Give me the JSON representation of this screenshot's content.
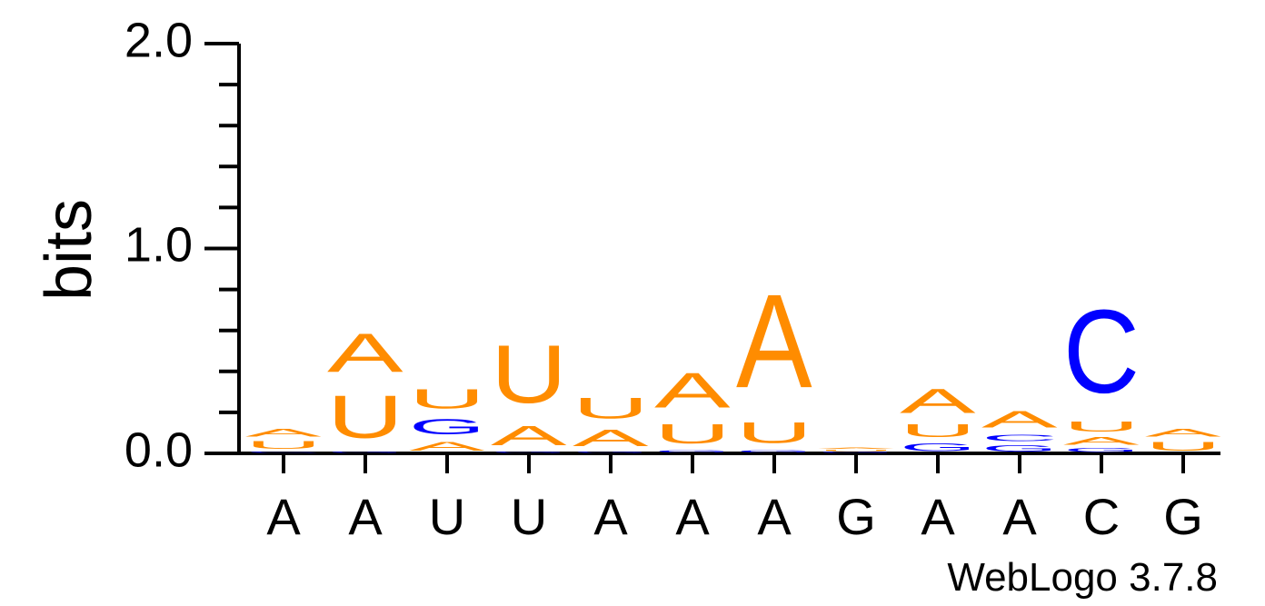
{
  "chart_data": {
    "type": "sequence-logo",
    "ylabel": "bits",
    "ylim": [
      0,
      2
    ],
    "yticks": [
      "0.0",
      "1.0",
      "2.0"
    ],
    "footer": "WebLogo 3.7.8",
    "colors": {
      "A": "#ff8c00",
      "U": "#ff8c00",
      "G": "#0000ff",
      "C": "#0000ff"
    },
    "positions": [
      {
        "label": "A",
        "stack": [
          {
            "letter": "C",
            "bits": 0.01
          },
          {
            "letter": "U",
            "bits": 0.06
          },
          {
            "letter": "A",
            "bits": 0.06
          }
        ]
      },
      {
        "label": "A",
        "stack": [
          {
            "letter": "G",
            "bits": 0.01
          },
          {
            "letter": "U",
            "bits": 0.33
          },
          {
            "letter": "A",
            "bits": 0.3
          }
        ]
      },
      {
        "label": "U",
        "stack": [
          {
            "letter": "A",
            "bits": 0.07
          },
          {
            "letter": "G",
            "bits": 0.12
          },
          {
            "letter": "U",
            "bits": 0.15
          }
        ]
      },
      {
        "label": "U",
        "stack": [
          {
            "letter": "G",
            "bits": 0.01
          },
          {
            "letter": "A",
            "bits": 0.15
          },
          {
            "letter": "U",
            "bits": 0.45
          }
        ]
      },
      {
        "label": "A",
        "stack": [
          {
            "letter": "G",
            "bits": 0.01
          },
          {
            "letter": "A",
            "bits": 0.13
          },
          {
            "letter": "U",
            "bits": 0.16
          }
        ]
      },
      {
        "label": "A",
        "stack": [
          {
            "letter": "G",
            "bits": 0.02
          },
          {
            "letter": "U",
            "bits": 0.15
          },
          {
            "letter": "A",
            "bits": 0.27
          }
        ]
      },
      {
        "label": "A",
        "stack": [
          {
            "letter": "G",
            "bits": 0.02
          },
          {
            "letter": "U",
            "bits": 0.16
          },
          {
            "letter": "A",
            "bits": 0.73
          }
        ]
      },
      {
        "label": "G",
        "stack": [
          {
            "letter": "G",
            "bits": 0.01
          },
          {
            "letter": "U",
            "bits": 0.01
          },
          {
            "letter": "A",
            "bits": 0.01
          }
        ]
      },
      {
        "label": "A",
        "stack": [
          {
            "letter": "G",
            "bits": 0.06
          },
          {
            "letter": "U",
            "bits": 0.1
          },
          {
            "letter": "A",
            "bits": 0.19
          }
        ]
      },
      {
        "label": "A",
        "stack": [
          {
            "letter": "G",
            "bits": 0.05
          },
          {
            "letter": "C",
            "bits": 0.05
          },
          {
            "letter": "A",
            "bits": 0.13
          }
        ]
      },
      {
        "label": "C",
        "stack": [
          {
            "letter": "G",
            "bits": 0.03
          },
          {
            "letter": "A",
            "bits": 0.06
          },
          {
            "letter": "U",
            "bits": 0.08
          },
          {
            "letter": "C",
            "bits": 0.65
          }
        ]
      },
      {
        "label": "G",
        "stack": [
          {
            "letter": "U",
            "bits": 0.07
          },
          {
            "letter": "A",
            "bits": 0.06
          }
        ]
      }
    ]
  }
}
